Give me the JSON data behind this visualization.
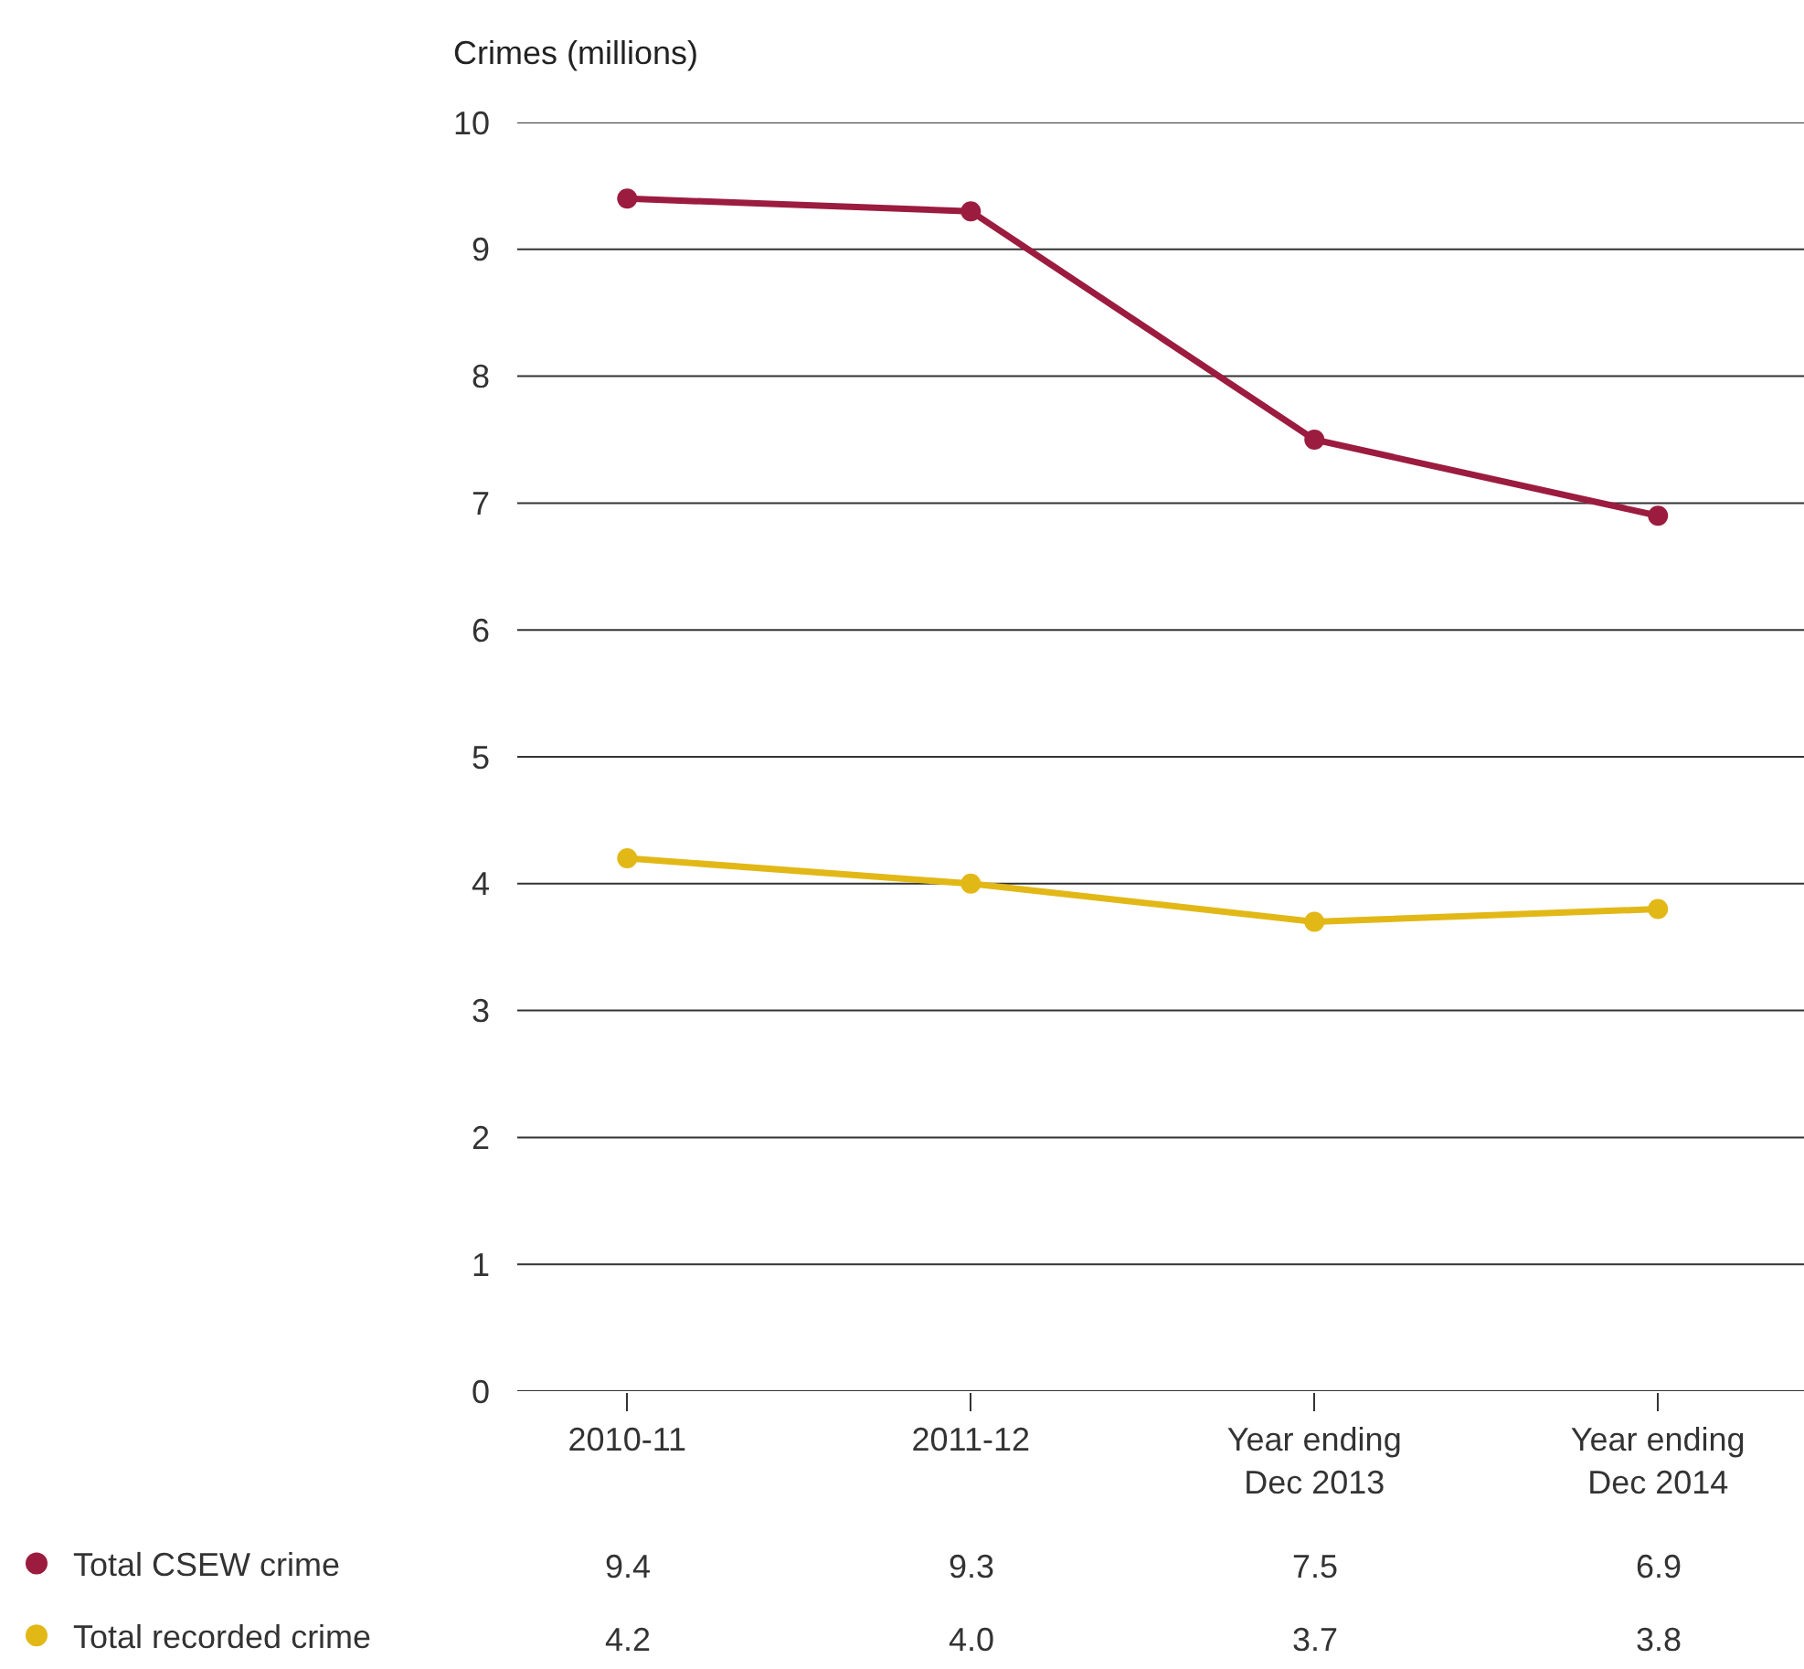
{
  "chart_data": {
    "type": "line",
    "ylabel": "Crimes (millions)",
    "categories": [
      "2010-11",
      "2011-12",
      "Year ending\nDec 2013",
      "Year ending\nDec 2014"
    ],
    "series": [
      {
        "name": "Total CSEW crime",
        "color": "#9b1c3f",
        "values": [
          9.4,
          9.3,
          7.5,
          6.9
        ],
        "value_labels": [
          "9.4",
          "9.3",
          "7.5",
          "6.9"
        ]
      },
      {
        "name": "Total recorded crime",
        "color": "#e2b817",
        "values": [
          4.2,
          4.0,
          3.7,
          3.8
        ],
        "value_labels": [
          "4.2",
          "4.0",
          "3.7",
          "3.8"
        ]
      }
    ],
    "ylim": [
      0,
      10
    ],
    "yticks": [
      0,
      1,
      2,
      3,
      4,
      5,
      6,
      7,
      8,
      9,
      10
    ],
    "grid": "y",
    "legend": "bottom left",
    "marker": "circle",
    "line_style": "solid"
  }
}
